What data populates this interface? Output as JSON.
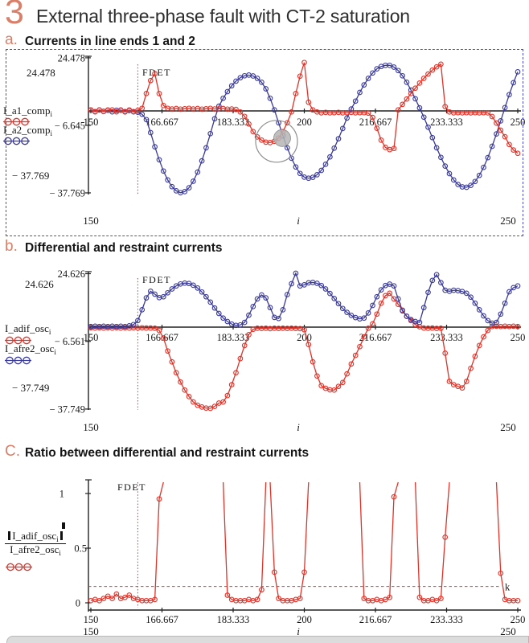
{
  "page": {
    "number": "3",
    "title": "External three-phase fault with CT-2 saturation"
  },
  "sections": [
    {
      "label": "a.",
      "title": "Currents in line ends 1 and 2"
    },
    {
      "label": "b.",
      "title": "Differential and restraint currents"
    },
    {
      "label": "C.",
      "title": "Ratio between differential and restraint currents"
    }
  ],
  "colors": {
    "accent_orange": "#d9806a",
    "series_red": "#e13228",
    "series_blue": "#3a3a9a",
    "axis_black": "#222222",
    "annotation_gray": "#8f8f8f",
    "selection_border_blue": "#4a4acd",
    "bottom_bar_gray": "#dcdcdc"
  },
  "chart_data": [
    {
      "type": "line",
      "title": "Currents in line ends 1 and 2",
      "xlabel": "i",
      "x_start": 150,
      "x_end": 250,
      "x_step": 1,
      "x_tick_values": [
        150,
        166.667,
        183.333,
        200,
        216.667,
        233.333,
        250
      ],
      "x_tick_labels": [
        "150",
        "166.667",
        "183.333",
        "200",
        "216.667",
        "233.333",
        "250"
      ],
      "y_ticks": [
        {
          "value": 24.478,
          "label": "24.478"
        },
        {
          "value": -6.645,
          "label": "− 6.645"
        },
        {
          "value": -37.769,
          "label": "− 37.769"
        }
      ],
      "y_limit_labels": {
        "top": "24.478",
        "bottom": "− 37.769"
      },
      "x_range_labels": {
        "min": "150",
        "var": "i",
        "max": "250"
      },
      "fdet": {
        "label": "FDET",
        "x": 161
      },
      "annotation_circle": {
        "i": 193.5,
        "value": -14
      },
      "series": [
        {
          "name": "I_a1_comp",
          "sub": "i",
          "color": "red",
          "values": [
            0.5,
            -0.4,
            0.5,
            -0.3,
            0.4,
            0.5,
            -0.4,
            0.3,
            -0.5,
            0.4,
            -0.3,
            0.3,
            1.2,
            8,
            14,
            17.2,
            8,
            2.5,
            1.2,
            0.9,
            1.1,
            0.8,
            1,
            1.2,
            0.9,
            1.1,
            0.8,
            1,
            1.2,
            0.9,
            1,
            1.1,
            0.8,
            0.9,
            0.7,
            -0.5,
            -2.5,
            -6,
            -9.5,
            -12,
            -13.5,
            -14.4,
            -14.6,
            -14,
            -12.5,
            -9.5,
            -5.5,
            -0.5,
            8,
            16,
            22.3,
            4,
            0.5,
            -0.5,
            -0.9,
            -0.7,
            -0.9,
            -0.8,
            -0.7,
            -0.9,
            -0.8,
            -0.7,
            -0.9,
            -0.8,
            -0.8,
            -1,
            -3,
            -8,
            -13.5,
            -16.8,
            -17.8,
            -17.3,
            0.5,
            3,
            5.5,
            8,
            10.5,
            12.8,
            15,
            17,
            18.8,
            20.3,
            21.5,
            2,
            -0.5,
            -0.9,
            -0.8,
            -0.9,
            -0.8,
            -0.9,
            -0.8,
            -0.9,
            -0.8,
            -0.9,
            -2.6,
            -5.6,
            -8.9,
            -11.9,
            -15.5,
            -18,
            -19.5
          ]
        },
        {
          "name": "I_a2_comp",
          "sub": "i",
          "color": "blue",
          "values": [
            0.4,
            -0.3,
            0.4,
            -0.2,
            0.3,
            -0.4,
            0.3,
            0.4,
            -0.3,
            0.2,
            -0.4,
            -0.6,
            -1.5,
            -4,
            -10,
            -16.5,
            -22.5,
            -27.7,
            -31.8,
            -34.9,
            -36.8,
            -37.7,
            -37.2,
            -35.4,
            -32.4,
            -28.2,
            -23,
            -17,
            -10.5,
            -3.6,
            2.2,
            5.8,
            8.9,
            11.6,
            13.7,
            15.3,
            16.2,
            16.5,
            16.1,
            15,
            13.2,
            10.2,
            5.8,
            0.5,
            -5.5,
            -11.5,
            -17,
            -21.8,
            -25.8,
            -28.8,
            -30.5,
            -31,
            -30.6,
            -29.4,
            -27.4,
            -24.6,
            -21.2,
            -17.2,
            -12.8,
            -8.1,
            -3.3,
            0.9,
            4.5,
            8.5,
            12,
            15,
            17.5,
            19.4,
            20.5,
            21,
            21,
            20.2,
            18.6,
            16.2,
            13.2,
            9.6,
            5.6,
            1.4,
            -2.9,
            -7.5,
            -12.3,
            -17,
            -21.4,
            -25.4,
            -28.9,
            -31.8,
            -33.9,
            -35,
            -35.2,
            -34.3,
            -32.5,
            -29.7,
            -26,
            -21.5,
            -16.3,
            -10.6,
            -4.6,
            1.5,
            7.5,
            13,
            18
          ]
        }
      ]
    },
    {
      "type": "line",
      "title": "Differential and restraint currents",
      "xlabel": "i",
      "x_start": 150,
      "x_end": 250,
      "x_step": 1,
      "x_tick_values": [
        150,
        166.667,
        183.333,
        200,
        216.667,
        233.333,
        250
      ],
      "x_tick_labels": [
        "150",
        "166.667",
        "183.333",
        "200",
        "216.667",
        "233.333",
        "250"
      ],
      "y_ticks": [
        {
          "value": 24.626,
          "label": "24.626"
        },
        {
          "value": -6.561,
          "label": "− 6.561"
        },
        {
          "value": -37.749,
          "label": "− 37.749"
        }
      ],
      "y_limit_labels": {
        "top": "24.626",
        "bottom": "− 37.749"
      },
      "x_range_labels": {
        "min": "150",
        "var": "i",
        "max": "250"
      },
      "fdet": {
        "label": "FDET",
        "x": 161
      },
      "series": [
        {
          "name": "I_adif_osc",
          "sub": "i",
          "color": "red",
          "values": [
            -0.3,
            -0.4,
            -0.3,
            -0.4,
            -0.3,
            -0.4,
            -0.3,
            -0.4,
            -0.3,
            -0.4,
            -0.3,
            -0.4,
            -0.3,
            -0.4,
            -0.4,
            -0.5,
            -1.5,
            -5,
            -11,
            -16,
            -21,
            -25.3,
            -29,
            -32,
            -34.5,
            -36,
            -36.8,
            -37.3,
            -37.4,
            -36.5,
            -35,
            -34.5,
            -31.5,
            -26.5,
            -21,
            -14.5,
            -8.5,
            -3.5,
            -1,
            -0.5,
            -0.6,
            -0.5,
            -0.7,
            -0.5,
            -0.6,
            -0.5,
            -0.6,
            -0.5,
            -0.6,
            -0.7,
            -1.2,
            -8,
            -16,
            -22.5,
            -27,
            -28.2,
            -28.9,
            -29,
            -27.3,
            -25.5,
            -21.5,
            -17,
            -13,
            -9,
            -4.5,
            -0.5,
            1.5,
            6,
            11,
            14.5,
            15.6,
            13,
            10.5,
            7.8,
            5,
            3,
            1.2,
            0.2,
            -0.4,
            -0.5,
            -0.4,
            -0.6,
            -0.5,
            -12,
            -25,
            -26.5,
            -27.3,
            -28,
            -25,
            -19,
            -13.5,
            -8.5,
            -4.5,
            -1.5,
            0.3,
            0.4,
            0.3,
            0.4,
            0.3,
            0.4,
            0.3
          ]
        },
        {
          "name": "I_afre2_osc",
          "sub": "i",
          "color": "blue",
          "values": [
            0.3,
            0.4,
            0.3,
            0.4,
            0.3,
            0.4,
            0.3,
            0.4,
            0.3,
            0.6,
            1.2,
            3,
            8,
            13.5,
            16.5,
            15.2,
            13.6,
            14,
            15.8,
            17.6,
            19,
            19.9,
            20.3,
            20.1,
            19.3,
            18,
            16.2,
            14,
            11.5,
            8.8,
            6.3,
            4.2,
            2.6,
            1.4,
            0.8,
            1,
            2.2,
            5.5,
            9.5,
            13,
            14.8,
            13.5,
            9,
            4.5,
            4,
            8,
            15,
            20,
            24.8,
            19,
            19.5,
            20.4,
            20.6,
            20.2,
            19.2,
            17.6,
            15.5,
            13.2,
            10.8,
            8.6,
            6.8,
            5.4,
            4.4,
            3.8,
            4.2,
            6.5,
            10,
            14,
            17.2,
            19.2,
            19.8,
            19,
            13,
            7.5,
            5,
            3.5,
            2.6,
            2.2,
            9,
            16,
            21.5,
            24.2,
            20.5,
            17,
            16.5,
            17,
            16.8,
            16.4,
            15.6,
            13.8,
            11,
            8,
            5.2,
            3,
            1.8,
            2.2,
            6,
            11,
            16.3,
            18.2,
            19
          ]
        }
      ]
    },
    {
      "type": "line",
      "title": "Ratio between differential and restraint currents",
      "xlabel": "i",
      "x_start": 150,
      "x_end": 250,
      "x_step": 1,
      "x_tick_values": [
        150,
        166.667,
        183.333,
        200,
        216.667,
        233.333,
        250
      ],
      "x_tick_labels": [
        "150",
        "166.667",
        "183.333",
        "200",
        "216.667",
        "233.333",
        "250"
      ],
      "y_ticks": [
        {
          "value": 1,
          "label": "1"
        },
        {
          "value": 0.5,
          "label": "0.5"
        },
        {
          "value": 0,
          "label": "0"
        }
      ],
      "x_range_labels": {
        "min": "150",
        "var": "i",
        "max": "250"
      },
      "fdet": {
        "label": "FDET",
        "x": 161
      },
      "threshold": {
        "label": "k",
        "value": 0.15
      },
      "ratio_label": {
        "numerator": "I_adif_osc",
        "numerator_sub": "i",
        "denominator": "I_afre2_osc",
        "denominator_sub": "i"
      },
      "clip_top": 1.05,
      "series": [
        {
          "name": "ratio",
          "sub": "i",
          "color": "red",
          "values": [
            0.02,
            0.03,
            0.02,
            0.04,
            0.06,
            0.04,
            0.08,
            0.04,
            0.05,
            0.07,
            0.04,
            0.03,
            0.02,
            0.02,
            0.02,
            0.03,
            0.95,
            1.2,
            1.2,
            1.2,
            1.2,
            1.2,
            1.2,
            1.2,
            1.2,
            1.2,
            1.2,
            1.2,
            1.2,
            1.2,
            1.2,
            1.2,
            0.07,
            0.03,
            0.02,
            0.02,
            0.02,
            0.03,
            0.02,
            0.03,
            0.12,
            1.2,
            1.2,
            0.28,
            0.04,
            0.02,
            0.02,
            0.02,
            0.03,
            0.04,
            0.28,
            1.2,
            1.2,
            1.2,
            1.2,
            1.2,
            1.2,
            1.2,
            1.2,
            1.2,
            1.2,
            1.2,
            1.2,
            1.2,
            0.04,
            0.02,
            0.02,
            0.03,
            0.02,
            0.03,
            0.05,
            0.97,
            1.2,
            1.2,
            1.2,
            1.2,
            1.2,
            0.05,
            0.02,
            0.02,
            0.03,
            0.02,
            0.04,
            0.6,
            1.2,
            1.2,
            1.2,
            1.2,
            1.2,
            1.2,
            1.2,
            1.2,
            1.2,
            1.2,
            1.2,
            1.2,
            0.27,
            0.03,
            0.02,
            0.02,
            0.02
          ]
        }
      ]
    }
  ]
}
